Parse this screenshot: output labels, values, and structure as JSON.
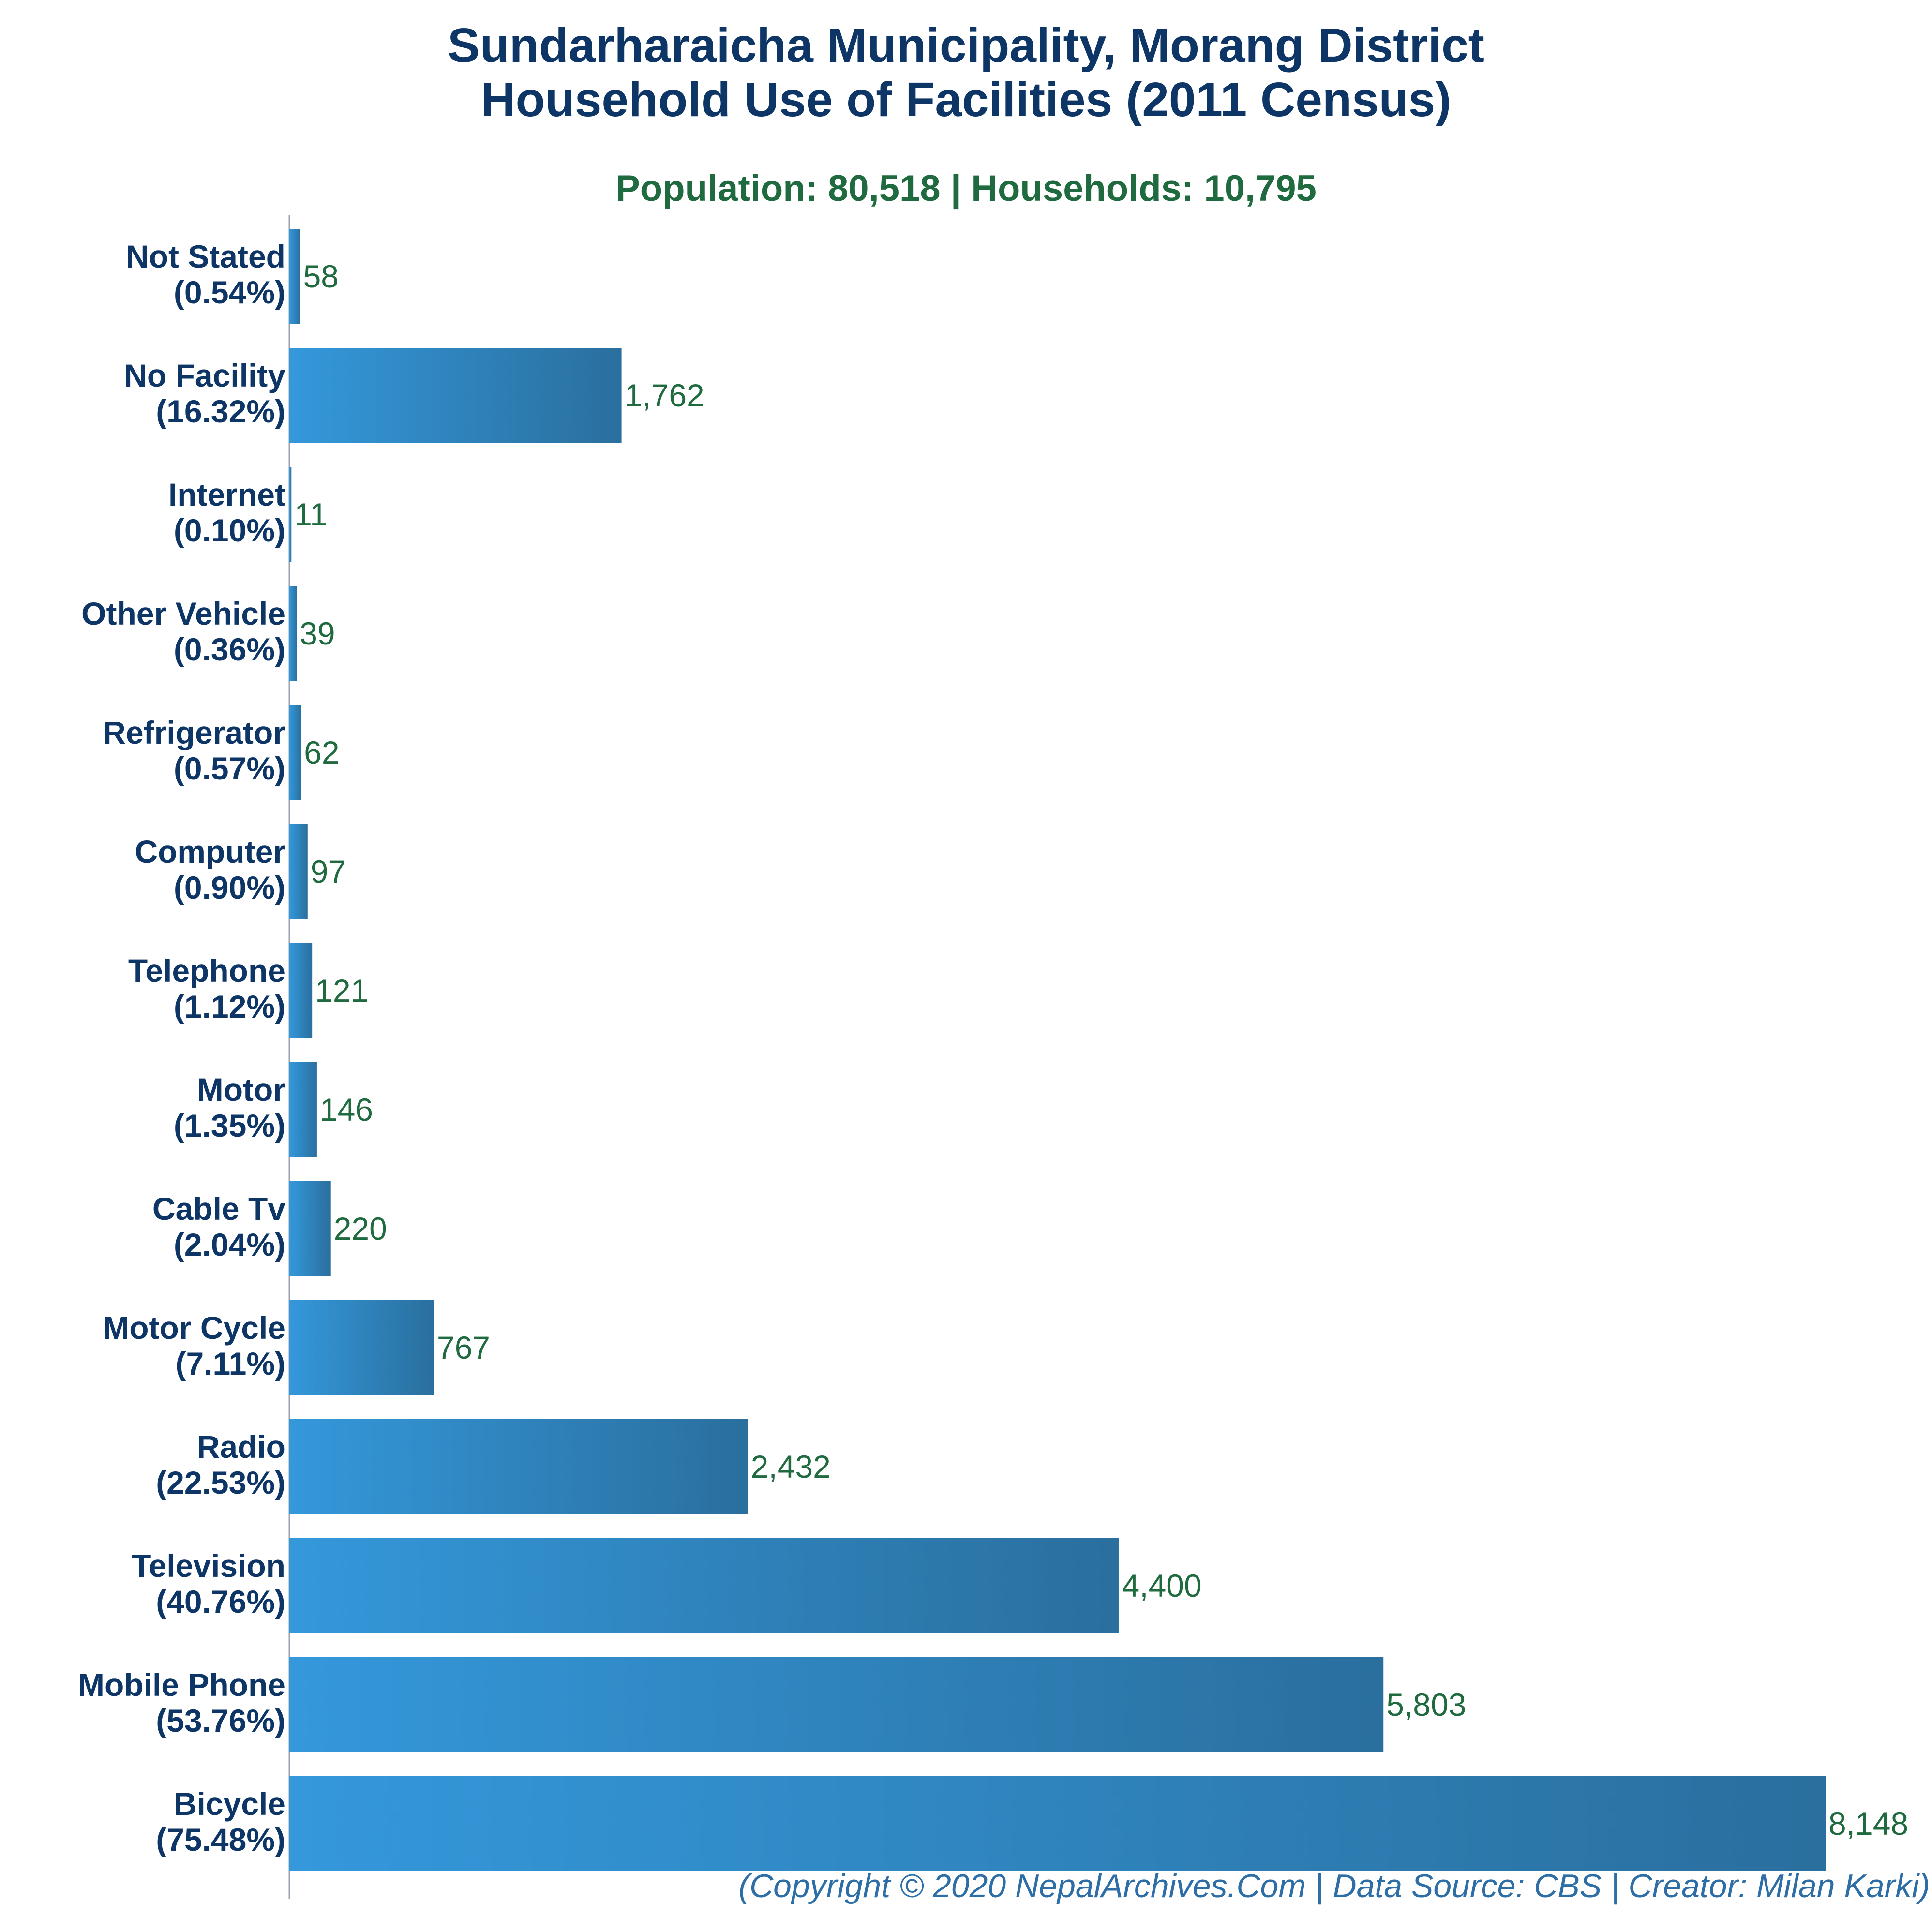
{
  "header": {
    "title_line1": "Sundarharaicha Municipality, Morang District",
    "title_line2": "Household Use of Facilities (2011 Census)",
    "subtitle": "Population: 80,518 | Households: 10,795"
  },
  "footer": {
    "credit": "(Copyright © 2020 NepalArchives.Com | Data Source: CBS | Creator: Milan Karki)"
  },
  "colors": {
    "bar_light": "#3498db",
    "bar_dark": "#2a6f9e",
    "category_text": "#0d3566",
    "value_text": "#1f6b3f",
    "axis": "#9aa3ad"
  },
  "chart_data": {
    "type": "bar",
    "orientation": "horizontal",
    "title": "Sundarharaicha Municipality, Morang District Household Use of Facilities (2011 Census)",
    "subtitle": "Population: 80,518 | Households: 10,795",
    "xlabel": "",
    "ylabel": "",
    "xlim": [
      0,
      8148
    ],
    "grid": false,
    "legend": "none",
    "categories": [
      "Not Stated",
      "No Facility",
      "Internet",
      "Other Vehicle",
      "Refrigerator",
      "Computer",
      "Telephone",
      "Motor",
      "Cable Tv",
      "Motor Cycle",
      "Radio",
      "Television",
      "Mobile Phone",
      "Bicycle"
    ],
    "percent_labels": [
      "(0.54%)",
      "(16.32%)",
      "(0.10%)",
      "(0.36%)",
      "(0.57%)",
      "(0.90%)",
      "(1.12%)",
      "(1.35%)",
      "(2.04%)",
      "(7.11%)",
      "(22.53%)",
      "(40.76%)",
      "(53.76%)",
      "(75.48%)"
    ],
    "values": [
      58,
      1762,
      11,
      39,
      62,
      97,
      121,
      146,
      220,
      767,
      2432,
      4400,
      5803,
      8148
    ],
    "value_labels": [
      "58",
      "1,762",
      "11",
      "39",
      "62",
      "97",
      "121",
      "146",
      "220",
      "767",
      "2,432",
      "4,400",
      "5,803",
      "8,148"
    ]
  }
}
